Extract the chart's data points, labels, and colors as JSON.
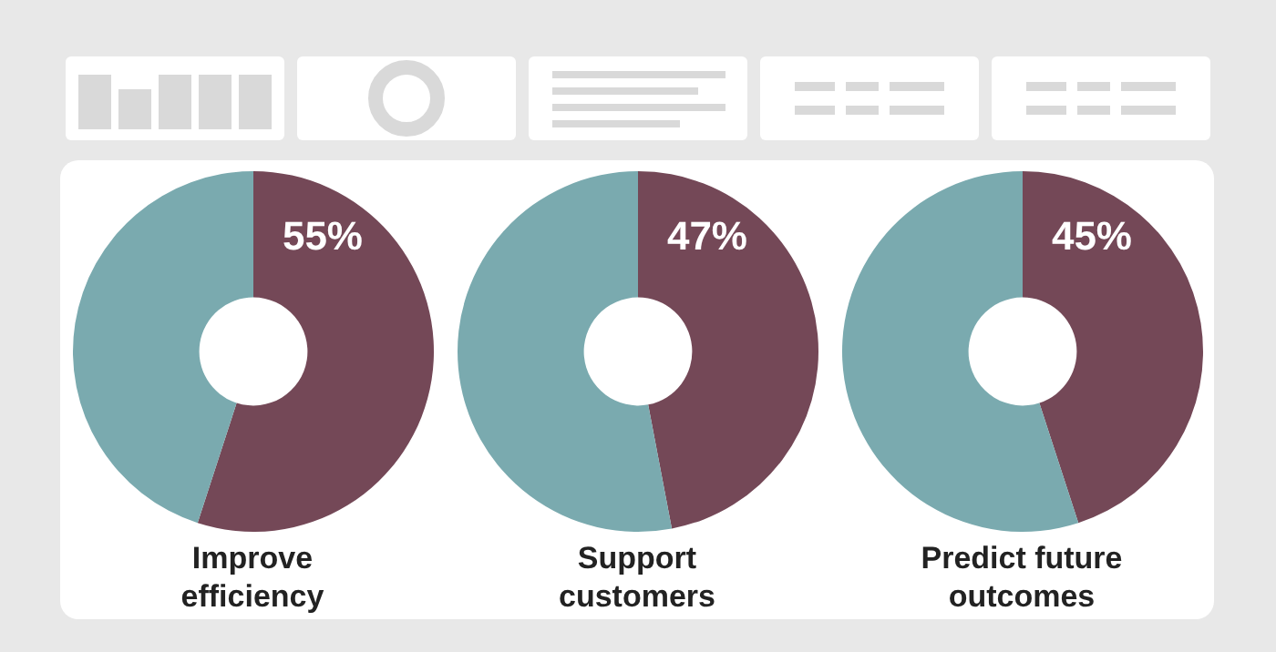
{
  "chart_data": [
    {
      "type": "donut",
      "title": "Improve efficiency",
      "categories": [
        null,
        null
      ],
      "values": [
        55,
        45
      ],
      "colors": [
        "#744857",
        "#7aaaaf"
      ],
      "value_labels": [
        "55%",
        null
      ]
    },
    {
      "type": "donut",
      "title": "Support customers",
      "categories": [
        null,
        null
      ],
      "values": [
        47,
        53
      ],
      "colors": [
        "#744857",
        "#7aaaaf"
      ],
      "value_labels": [
        "47%",
        null
      ]
    },
    {
      "type": "donut",
      "title": "Predict future outcomes",
      "categories": [
        null,
        null
      ],
      "values": [
        45,
        55
      ],
      "colors": [
        "#744857",
        "#7aaaaf"
      ],
      "value_labels": [
        "45%",
        null
      ]
    }
  ]
}
